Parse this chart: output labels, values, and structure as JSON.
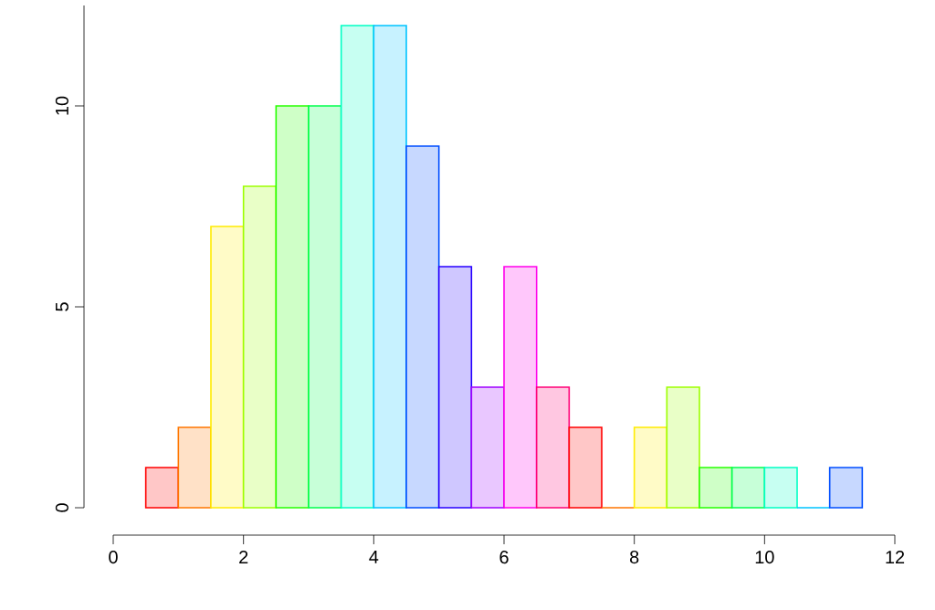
{
  "chart_data": {
    "type": "histogram",
    "bins": [
      0.5,
      1,
      1.5,
      2,
      2.5,
      3,
      3.5,
      4,
      4.5,
      5,
      5.5,
      6,
      6.5,
      7,
      7.5,
      8,
      8.5,
      9,
      9.5,
      10,
      10.5,
      11,
      11.5
    ],
    "values": [
      1,
      2,
      7,
      8,
      10,
      10,
      12,
      12,
      9,
      6,
      3,
      6,
      3,
      2,
      0,
      2,
      3,
      1,
      1,
      1,
      0,
      1
    ],
    "colors": [
      "#FF0000",
      "#FF7600",
      "#FFEB00",
      "#9DFF00",
      "#27FF00",
      "#00FF4E",
      "#00FFC4",
      "#00C4FF",
      "#004EFF",
      "#2700FF",
      "#9D00FF",
      "#FF00EB",
      "#FF0076",
      "#FF0000",
      "#FF7600",
      "#FFEB00",
      "#9DFF00",
      "#27FF00",
      "#00FF4E",
      "#00FFC4",
      "#00C4FF",
      "#004EFF"
    ],
    "xlim": [
      0,
      12
    ],
    "ylim": [
      0,
      12.5
    ],
    "xticks": [
      0,
      2,
      4,
      6,
      8,
      10,
      12
    ],
    "yticks": [
      0,
      5,
      10
    ],
    "grid": false
  }
}
